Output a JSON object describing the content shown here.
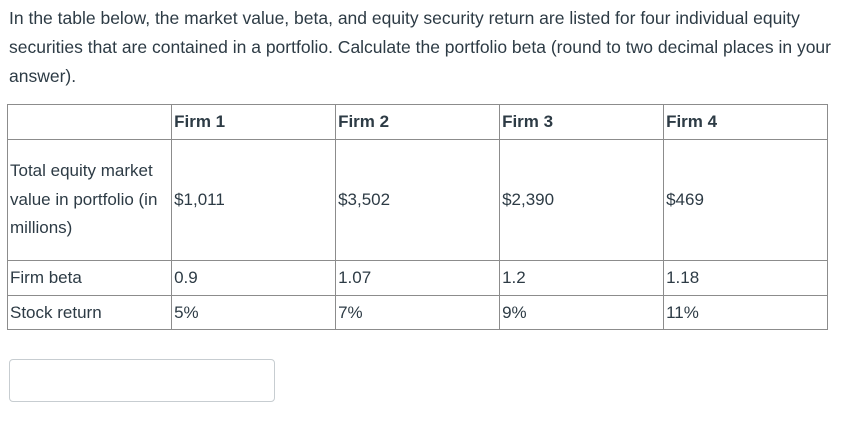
{
  "question": {
    "text": "In the table below, the market value, beta, and equity security return are listed for four individual equity securities that are contained in a portfolio. Calculate the portfolio beta (round to two decimal places in your answer)."
  },
  "table": {
    "headers": [
      "",
      "Firm 1",
      "Firm 2",
      "Firm 3",
      "Firm 4"
    ],
    "rows": [
      {
        "label": "Total equity market value in portfolio (in millions)",
        "cells": [
          "$1,011",
          "$3,502",
          "$2,390",
          "$469"
        ]
      },
      {
        "label": "Firm beta",
        "cells": [
          "0.9",
          "1.07",
          "1.2",
          "1.18"
        ]
      },
      {
        "label": "Stock return",
        "cells": [
          "5%",
          "7%",
          "9%",
          "11%"
        ]
      }
    ]
  },
  "answer": {
    "value": "",
    "placeholder": ""
  }
}
